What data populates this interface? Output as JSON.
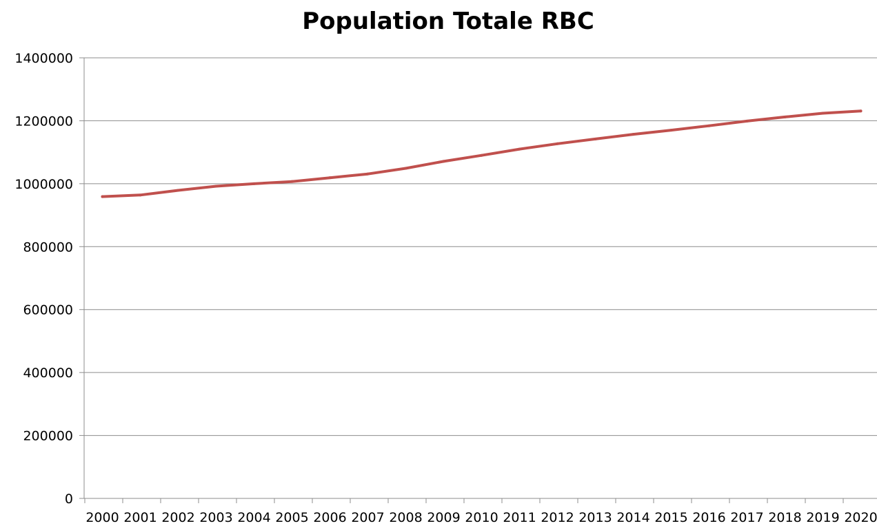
{
  "chart_data": {
    "type": "line",
    "title": "Population Totale RBC",
    "xlabel": "",
    "ylabel": "",
    "categories": [
      "2000",
      "2001",
      "2002",
      "2003",
      "2004",
      "2005",
      "2006",
      "2007",
      "2008",
      "2009",
      "2010",
      "2011",
      "2012",
      "2013",
      "2014",
      "2015",
      "2016",
      "2017",
      "2018",
      "2019",
      "2020"
    ],
    "series": [
      {
        "values": [
          959000,
          964000,
          979000,
          992000,
          1000000,
          1007000,
          1019000,
          1031000,
          1049000,
          1071000,
          1090000,
          1110000,
          1127000,
          1142000,
          1157000,
          1170000,
          1184000,
          1199000,
          1212000,
          1224000,
          1231000
        ],
        "color": "#c0504d"
      }
    ],
    "ylim": [
      0,
      1400000
    ],
    "yticks": [
      "0",
      "200000",
      "400000",
      "600000",
      "800000",
      "1000000",
      "1200000",
      "1400000"
    ],
    "grid": true,
    "legend": "none"
  }
}
